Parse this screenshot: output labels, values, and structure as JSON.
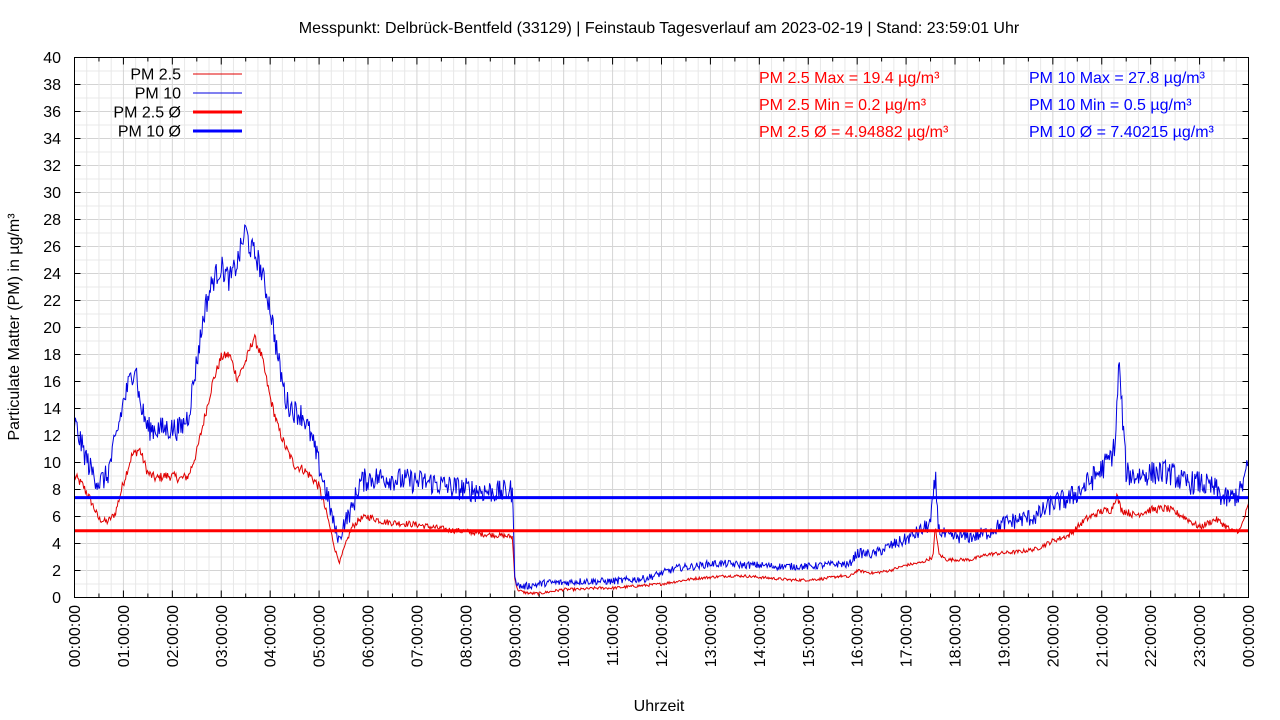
{
  "chart_data": {
    "type": "line",
    "title": "Messpunkt: Delbrück-Bentfeld (33129) | Feinstaub Tagesverlauf am 2023-02-19 | Stand: 23:59:01 Uhr",
    "xlabel": "Uhrzeit",
    "ylabel": "Particulate Matter (PM) in µg/m³",
    "xlim": [
      0,
      24
    ],
    "ylim": [
      0,
      40
    ],
    "grid": true,
    "legend_position": "top-left",
    "x_tick_labels": [
      "00:00:00",
      "01:00:00",
      "02:00:00",
      "03:00:00",
      "04:00:00",
      "05:00:00",
      "06:00:00",
      "07:00:00",
      "08:00:00",
      "09:00:00",
      "10:00:00",
      "11:00:00",
      "12:00:00",
      "13:00:00",
      "14:00:00",
      "15:00:00",
      "16:00:00",
      "17:00:00",
      "18:00:00",
      "19:00:00",
      "20:00:00",
      "21:00:00",
      "22:00:00",
      "23:00:00",
      "00:00:00"
    ],
    "y_ticks": [
      0,
      2,
      4,
      6,
      8,
      10,
      12,
      14,
      16,
      18,
      20,
      22,
      24,
      26,
      28,
      30,
      32,
      34,
      36,
      38,
      40
    ],
    "series": [
      {
        "name": "PM 2.5",
        "color": "#e00000",
        "x": [
          0,
          0.17,
          0.33,
          0.5,
          0.67,
          0.83,
          1.0,
          1.17,
          1.33,
          1.5,
          1.67,
          1.83,
          2.0,
          2.17,
          2.33,
          2.5,
          2.67,
          2.83,
          3.0,
          3.17,
          3.33,
          3.5,
          3.67,
          3.83,
          4.0,
          4.17,
          4.33,
          4.5,
          4.67,
          4.83,
          5.0,
          5.17,
          5.33,
          5.42,
          5.5,
          5.67,
          5.83,
          6.0,
          6.33,
          6.67,
          7.0,
          7.33,
          7.67,
          8.0,
          8.33,
          8.67,
          8.95,
          9.0,
          9.05,
          9.17,
          9.33,
          9.5,
          9.67,
          9.83,
          10.0,
          10.33,
          10.67,
          11.0,
          11.33,
          11.67,
          12.0,
          12.33,
          12.67,
          13.0,
          13.33,
          13.67,
          14.0,
          14.33,
          14.67,
          15.0,
          15.33,
          15.67,
          15.83,
          16.0,
          16.33,
          16.67,
          17.0,
          17.33,
          17.55,
          17.6,
          17.67,
          17.83,
          18.0,
          18.33,
          18.67,
          19.0,
          19.33,
          19.67,
          20.0,
          20.33,
          20.67,
          21.0,
          21.2,
          21.3,
          21.4,
          21.67,
          22.0,
          22.33,
          22.5,
          22.67,
          23.0,
          23.33,
          23.5,
          23.67,
          23.83,
          24.0
        ],
        "values": [
          9,
          8.3,
          7.2,
          5.8,
          5.6,
          6.2,
          8.5,
          10.5,
          11,
          9.2,
          8.8,
          9,
          9,
          8.8,
          9,
          10.8,
          13.5,
          16,
          17.8,
          18,
          16.2,
          17.5,
          19.3,
          17.8,
          14.8,
          12.5,
          11,
          9.8,
          9.5,
          9,
          8.2,
          6,
          3.5,
          2.6,
          3.5,
          5.2,
          5.8,
          6,
          5.6,
          5.5,
          5.4,
          5.2,
          5,
          4.9,
          4.7,
          4.6,
          4.5,
          1.5,
          0.6,
          0.4,
          0.3,
          0.3,
          0.4,
          0.5,
          0.6,
          0.6,
          0.7,
          0.7,
          0.8,
          0.9,
          1.0,
          1.2,
          1.4,
          1.5,
          1.6,
          1.6,
          1.5,
          1.4,
          1.3,
          1.3,
          1.4,
          1.6,
          1.5,
          2.0,
          1.8,
          2.0,
          2.4,
          2.6,
          3.0,
          5.3,
          3.2,
          2.8,
          2.8,
          2.8,
          3.2,
          3.3,
          3.4,
          3.6,
          4.2,
          4.6,
          5.8,
          6.4,
          6.5,
          7.6,
          6.5,
          6.1,
          6.5,
          6.6,
          6.3,
          6.0,
          5.2,
          5.8,
          5.4,
          4.9,
          5.0,
          6.8
        ]
      },
      {
        "name": "PM 10",
        "color": "#0000e0",
        "x": [
          0,
          0.17,
          0.33,
          0.5,
          0.67,
          0.83,
          1.0,
          1.17,
          1.25,
          1.33,
          1.5,
          1.67,
          1.83,
          2.0,
          2.17,
          2.33,
          2.5,
          2.67,
          2.83,
          3.0,
          3.17,
          3.33,
          3.5,
          3.58,
          3.67,
          3.75,
          3.83,
          4.0,
          4.17,
          4.33,
          4.5,
          4.67,
          4.83,
          5.0,
          5.17,
          5.33,
          5.42,
          5.5,
          5.67,
          5.83,
          6.0,
          6.33,
          6.67,
          7.0,
          7.33,
          7.67,
          8.0,
          8.33,
          8.67,
          8.95,
          9.0,
          9.05,
          9.17,
          9.33,
          9.5,
          9.67,
          9.83,
          10.0,
          10.33,
          10.67,
          11.0,
          11.33,
          11.67,
          12.0,
          12.33,
          12.67,
          13.0,
          13.33,
          13.67,
          14.0,
          14.33,
          14.67,
          15.0,
          15.33,
          15.67,
          15.83,
          16.0,
          16.33,
          16.67,
          17.0,
          17.33,
          17.5,
          17.6,
          17.67,
          17.83,
          18.0,
          18.33,
          18.67,
          19.0,
          19.33,
          19.67,
          20.0,
          20.33,
          20.67,
          21.0,
          21.2,
          21.28,
          21.35,
          21.5,
          21.67,
          22.0,
          22.33,
          22.5,
          22.67,
          23.0,
          23.33,
          23.5,
          23.67,
          23.83,
          24.0
        ],
        "values": [
          13,
          11,
          9.5,
          8.5,
          9,
          11.5,
          14.5,
          16.5,
          17.3,
          14.5,
          12.5,
          12.5,
          12.5,
          12.5,
          12.5,
          13.5,
          17.5,
          21.5,
          23.5,
          24.5,
          23.5,
          24.8,
          27.3,
          26,
          25.5,
          25,
          24,
          21.5,
          17.5,
          14.5,
          13.8,
          13.5,
          12,
          9.8,
          7.5,
          5,
          4.2,
          5.5,
          6.5,
          8.5,
          8.8,
          8.9,
          8.7,
          8.6,
          8.5,
          8.2,
          8,
          7.9,
          7.8,
          7.9,
          1.8,
          0.9,
          0.8,
          0.9,
          1.0,
          1.1,
          1.1,
          1.1,
          1.2,
          1.2,
          1.2,
          1.3,
          1.4,
          1.8,
          2.2,
          2.3,
          2.5,
          2.5,
          2.4,
          2.4,
          2.3,
          2.3,
          2.3,
          2.4,
          2.5,
          2.4,
          3.3,
          3.2,
          3.8,
          4.3,
          5.0,
          5.5,
          8.8,
          5.0,
          4.5,
          4.5,
          4.5,
          4.8,
          5.5,
          5.8,
          6.0,
          7.0,
          7.3,
          8.3,
          9.5,
          10.5,
          11.5,
          17.5,
          9.2,
          9.0,
          9.2,
          9.3,
          9.0,
          8.5,
          8.5,
          8.0,
          7.3,
          7.4,
          7.8,
          9.8
        ]
      },
      {
        "name": "PM 2.5 Ø",
        "color": "#ff0000",
        "mean": 4.94882
      },
      {
        "name": "PM 10 Ø",
        "color": "#0000ff",
        "mean": 7.40215
      }
    ],
    "annotations": [
      {
        "text": "PM 2.5 Max = 19.4 µg/m³",
        "color": "#ff0000"
      },
      {
        "text": "PM 2.5 Min = 0.2 µg/m³",
        "color": "#ff0000"
      },
      {
        "text": "PM 2.5 Ø = 4.94882 µg/m³",
        "color": "#ff0000"
      },
      {
        "text": "PM 10 Max = 27.8 µg/m³",
        "color": "#0000ff"
      },
      {
        "text": "PM 10 Min = 0.5 µg/m³",
        "color": "#0000ff"
      },
      {
        "text": "PM 10 Ø = 7.40215 µg/m³",
        "color": "#0000ff"
      }
    ]
  }
}
